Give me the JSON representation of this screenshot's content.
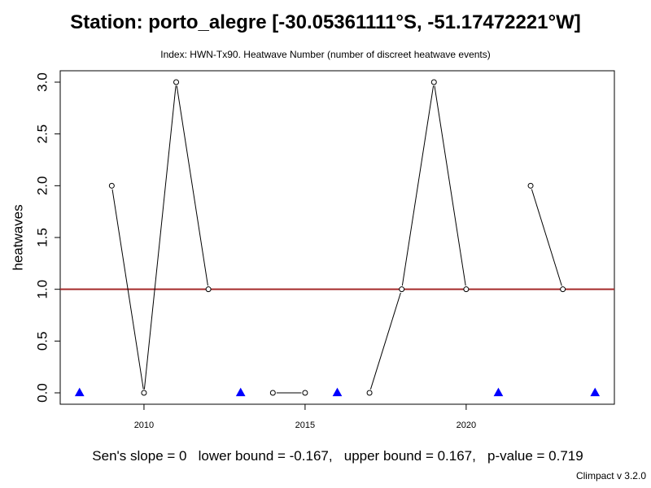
{
  "title": "Station: porto_alegre [-30.05361111°S, -51.17472221°W]",
  "subtitle": "Index: HWN-Tx90. Heatwave Number (number of discreet heatwave events)",
  "stats_line": "Sen's slope = 0   lower bound = -0.167,   upper bound = 0.167,   p-value = 0.719",
  "credit": "Climpact v 3.2.0",
  "chart_data": {
    "type": "line",
    "title": "Station: porto_alegre [-30.05361111°S, -51.17472221°W]",
    "xlabel": "",
    "ylabel": "heatwaves",
    "xlim": [
      2007.4,
      2024.6
    ],
    "ylim": [
      -0.11,
      3.11
    ],
    "xticks": [
      2010,
      2015,
      2020
    ],
    "yticks": [
      0.0,
      0.5,
      1.0,
      1.5,
      2.0,
      2.5,
      3.0
    ],
    "ytick_labels": [
      "0.0",
      "0.5",
      "1.0",
      "1.5",
      "2.0",
      "2.5",
      "3.0"
    ],
    "grid": false,
    "series": [
      {
        "x": [
          2009,
          2010,
          2011,
          2012,
          2014,
          2015,
          2017,
          2018,
          2019,
          2020,
          2022,
          2023
        ],
        "values": [
          2,
          0,
          3,
          1,
          0,
          0,
          0,
          1,
          3,
          1,
          2,
          1
        ],
        "line_segments": [
          [
            2009,
            2012
          ],
          [
            2014,
            2015
          ],
          [
            2017,
            2020
          ],
          [
            2022,
            2023
          ]
        ],
        "marker": "open-circle",
        "color": "#000000"
      }
    ],
    "missing_years": [
      2008,
      2013,
      2016,
      2021,
      2024
    ],
    "missing_marker": "filled-triangle",
    "missing_color": "#0000ff",
    "reference_line": {
      "y": 1.0,
      "color": "#a52a2a"
    }
  }
}
